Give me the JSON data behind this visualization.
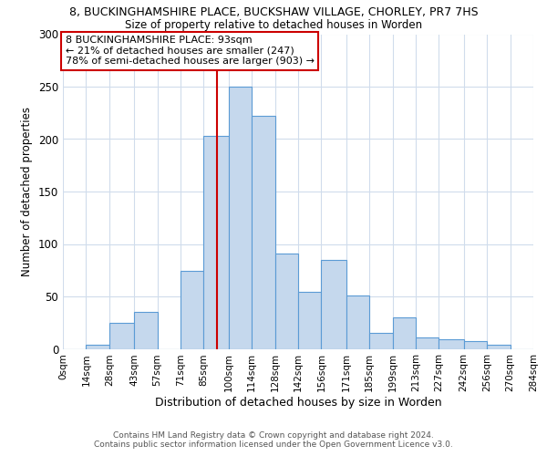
{
  "title": "8, BUCKINGHAMSHIRE PLACE, BUCKSHAW VILLAGE, CHORLEY, PR7 7HS",
  "subtitle": "Size of property relative to detached houses in Worden",
  "xlabel": "Distribution of detached houses by size in Worden",
  "ylabel": "Number of detached properties",
  "bin_labels": [
    "0sqm",
    "14sqm",
    "28sqm",
    "43sqm",
    "57sqm",
    "71sqm",
    "85sqm",
    "100sqm",
    "114sqm",
    "128sqm",
    "142sqm",
    "156sqm",
    "171sqm",
    "185sqm",
    "199sqm",
    "213sqm",
    "227sqm",
    "242sqm",
    "256sqm",
    "270sqm",
    "284sqm"
  ],
  "bin_edges": [
    0,
    14,
    28,
    43,
    57,
    71,
    85,
    100,
    114,
    128,
    142,
    156,
    171,
    185,
    199,
    213,
    227,
    242,
    256,
    270,
    284
  ],
  "bar_heights": [
    0,
    4,
    25,
    35,
    0,
    74,
    203,
    250,
    222,
    91,
    54,
    85,
    51,
    15,
    30,
    11,
    9,
    7,
    4,
    0
  ],
  "bar_color": "#c5d8ed",
  "bar_edge_color": "#5b9bd5",
  "marker_value": 93,
  "marker_color": "#cc0000",
  "annotation_line1": "8 BUCKINGHAMSHIRE PLACE: 93sqm",
  "annotation_line2": "← 21% of detached houses are smaller (247)",
  "annotation_line3": "78% of semi-detached houses are larger (903) →",
  "annotation_box_edge_color": "#cc0000",
  "ylim": [
    0,
    300
  ],
  "yticks": [
    0,
    50,
    100,
    150,
    200,
    250,
    300
  ],
  "footer_line1": "Contains HM Land Registry data © Crown copyright and database right 2024.",
  "footer_line2": "Contains public sector information licensed under the Open Government Licence v3.0.",
  "background_color": "#ffffff",
  "grid_color": "#d0dcec"
}
